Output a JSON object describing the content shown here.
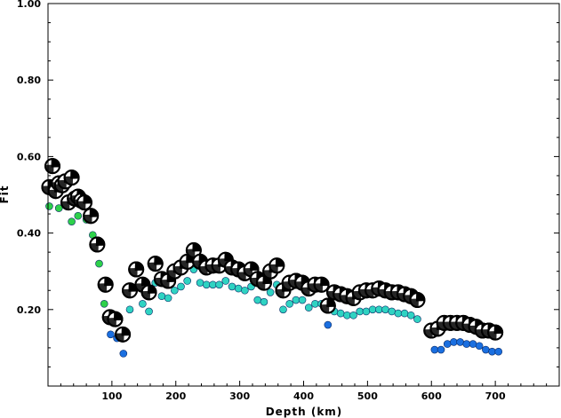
{
  "chart_data": {
    "type": "scatter",
    "title": "",
    "xlabel": "Depth (km)",
    "ylabel": "Fit",
    "xlim": [
      0,
      800
    ],
    "ylim": [
      0,
      1.0
    ],
    "x_ticks": [
      100,
      200,
      300,
      400,
      500,
      600,
      700
    ],
    "y_ticks": [
      0.2,
      0.4,
      0.6,
      0.8,
      1.0
    ],
    "y_tick_labels": [
      "0.20",
      "0.40",
      "0.60",
      "0.80",
      "1.00"
    ],
    "grid": false,
    "series": [
      {
        "marker": "focal-mechanism",
        "points": [
          [
            2,
            0.52
          ],
          [
            7,
            0.575
          ],
          [
            12,
            0.51
          ],
          [
            17,
            0.53
          ],
          [
            22,
            0.525
          ],
          [
            27,
            0.535
          ],
          [
            32,
            0.48
          ],
          [
            37,
            0.545
          ],
          [
            42,
            0.49
          ],
          [
            47,
            0.495
          ],
          [
            52,
            0.485
          ],
          [
            57,
            0.48
          ],
          [
            67,
            0.445
          ],
          [
            77,
            0.37
          ],
          [
            90,
            0.265
          ],
          [
            97,
            0.18
          ],
          [
            105,
            0.175
          ],
          [
            117,
            0.135
          ],
          [
            128,
            0.25
          ],
          [
            138,
            0.305
          ],
          [
            148,
            0.265
          ],
          [
            158,
            0.245
          ],
          [
            168,
            0.32
          ],
          [
            178,
            0.28
          ],
          [
            188,
            0.275
          ],
          [
            198,
            0.3
          ],
          [
            208,
            0.31
          ],
          [
            218,
            0.325
          ],
          [
            228,
            0.355
          ],
          [
            238,
            0.325
          ],
          [
            248,
            0.31
          ],
          [
            258,
            0.315
          ],
          [
            268,
            0.315
          ],
          [
            278,
            0.33
          ],
          [
            288,
            0.31
          ],
          [
            298,
            0.305
          ],
          [
            308,
            0.295
          ],
          [
            318,
            0.305
          ],
          [
            328,
            0.28
          ],
          [
            338,
            0.27
          ],
          [
            348,
            0.3
          ],
          [
            358,
            0.315
          ],
          [
            368,
            0.25
          ],
          [
            378,
            0.27
          ],
          [
            388,
            0.275
          ],
          [
            398,
            0.27
          ],
          [
            408,
            0.255
          ],
          [
            418,
            0.265
          ],
          [
            428,
            0.265
          ],
          [
            438,
            0.21
          ],
          [
            448,
            0.245
          ],
          [
            458,
            0.24
          ],
          [
            468,
            0.235
          ],
          [
            478,
            0.23
          ],
          [
            488,
            0.245
          ],
          [
            498,
            0.25
          ],
          [
            508,
            0.25
          ],
          [
            518,
            0.255
          ],
          [
            528,
            0.25
          ],
          [
            538,
            0.245
          ],
          [
            548,
            0.245
          ],
          [
            558,
            0.24
          ],
          [
            568,
            0.235
          ],
          [
            578,
            0.225
          ],
          [
            600,
            0.145
          ],
          [
            610,
            0.15
          ],
          [
            620,
            0.165
          ],
          [
            630,
            0.165
          ],
          [
            640,
            0.165
          ],
          [
            650,
            0.165
          ],
          [
            660,
            0.16
          ],
          [
            670,
            0.155
          ],
          [
            680,
            0.145
          ],
          [
            690,
            0.145
          ],
          [
            700,
            0.14
          ]
        ]
      },
      {
        "marker": "dot",
        "colors": [
          "#2ed14a",
          "#2fd3c2",
          "#1a6fe0"
        ],
        "points": [
          [
            2,
            0.47
          ],
          [
            17,
            0.465
          ],
          [
            37,
            0.43
          ],
          [
            47,
            0.445
          ],
          [
            60,
            0.435
          ],
          [
            70,
            0.395
          ],
          [
            80,
            0.32
          ],
          [
            88,
            0.215
          ],
          [
            98,
            0.135
          ],
          [
            108,
            0.125
          ],
          [
            118,
            0.085
          ],
          [
            128,
            0.2
          ],
          [
            148,
            0.215
          ],
          [
            158,
            0.195
          ],
          [
            168,
            0.27
          ],
          [
            178,
            0.235
          ],
          [
            188,
            0.23
          ],
          [
            198,
            0.25
          ],
          [
            208,
            0.26
          ],
          [
            218,
            0.275
          ],
          [
            228,
            0.305
          ],
          [
            238,
            0.27
          ],
          [
            248,
            0.265
          ],
          [
            258,
            0.265
          ],
          [
            268,
            0.265
          ],
          [
            278,
            0.275
          ],
          [
            288,
            0.26
          ],
          [
            298,
            0.255
          ],
          [
            308,
            0.25
          ],
          [
            318,
            0.26
          ],
          [
            328,
            0.225
          ],
          [
            338,
            0.22
          ],
          [
            348,
            0.245
          ],
          [
            358,
            0.265
          ],
          [
            368,
            0.2
          ],
          [
            378,
            0.215
          ],
          [
            388,
            0.225
          ],
          [
            398,
            0.225
          ],
          [
            408,
            0.205
          ],
          [
            418,
            0.215
          ],
          [
            428,
            0.215
          ],
          [
            438,
            0.16
          ],
          [
            448,
            0.195
          ],
          [
            458,
            0.19
          ],
          [
            468,
            0.185
          ],
          [
            478,
            0.185
          ],
          [
            488,
            0.195
          ],
          [
            498,
            0.195
          ],
          [
            508,
            0.2
          ],
          [
            518,
            0.2
          ],
          [
            528,
            0.2
          ],
          [
            538,
            0.195
          ],
          [
            548,
            0.19
          ],
          [
            558,
            0.19
          ],
          [
            568,
            0.185
          ],
          [
            578,
            0.175
          ],
          [
            605,
            0.095
          ],
          [
            615,
            0.095
          ],
          [
            625,
            0.11
          ],
          [
            635,
            0.115
          ],
          [
            645,
            0.115
          ],
          [
            655,
            0.11
          ],
          [
            665,
            0.11
          ],
          [
            675,
            0.105
          ],
          [
            685,
            0.095
          ],
          [
            695,
            0.09
          ],
          [
            705,
            0.09
          ]
        ]
      }
    ]
  }
}
